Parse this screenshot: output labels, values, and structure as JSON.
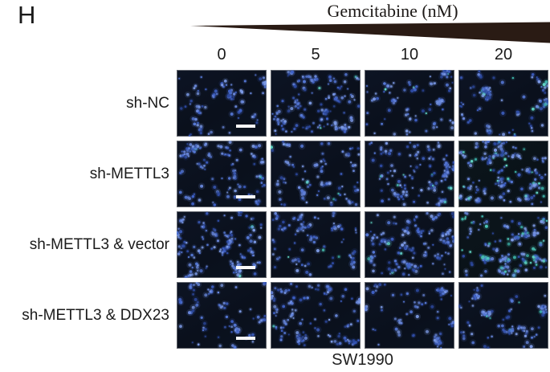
{
  "panel_label": "H",
  "header": {
    "title": "Gemcitabine (nM)",
    "doses": [
      "0",
      "5",
      "10",
      "20"
    ],
    "wedge_direction": "increasing-left-to-right"
  },
  "rows": [
    {
      "label": "sh-NC",
      "cells": [
        {
          "seed": 11,
          "density": 95,
          "cyan": 0.0,
          "scale_bar": true
        },
        {
          "seed": 12,
          "density": 155,
          "cyan": 0.02,
          "scale_bar": false
        },
        {
          "seed": 13,
          "density": 100,
          "cyan": 0.02,
          "scale_bar": false
        },
        {
          "seed": 14,
          "density": 110,
          "cyan": 0.05,
          "scale_bar": false
        }
      ]
    },
    {
      "label": "sh-METTL3",
      "cells": [
        {
          "seed": 21,
          "density": 125,
          "cyan": 0.03,
          "scale_bar": true
        },
        {
          "seed": 22,
          "density": 105,
          "cyan": 0.04,
          "scale_bar": false
        },
        {
          "seed": 23,
          "density": 150,
          "cyan": 0.06,
          "scale_bar": false
        },
        {
          "seed": 24,
          "density": 180,
          "cyan": 0.14,
          "scale_bar": false
        }
      ]
    },
    {
      "label": "sh-METTL3 & vector",
      "cells": [
        {
          "seed": 31,
          "density": 155,
          "cyan": 0.03,
          "scale_bar": true
        },
        {
          "seed": 32,
          "density": 100,
          "cyan": 0.02,
          "scale_bar": false
        },
        {
          "seed": 33,
          "density": 160,
          "cyan": 0.06,
          "scale_bar": false
        },
        {
          "seed": 34,
          "density": 170,
          "cyan": 0.2,
          "scale_bar": false
        }
      ]
    },
    {
      "label": "sh-METTL3 & DDX23",
      "cells": [
        {
          "seed": 41,
          "density": 85,
          "cyan": 0.0,
          "scale_bar": true
        },
        {
          "seed": 42,
          "density": 135,
          "cyan": 0.03,
          "scale_bar": false
        },
        {
          "seed": 43,
          "density": 95,
          "cyan": 0.0,
          "scale_bar": false
        },
        {
          "seed": 44,
          "density": 105,
          "cyan": 0.03,
          "scale_bar": false
        }
      ]
    }
  ],
  "footer": {
    "cell_line": "SW1990"
  },
  "colors": {
    "wedge": "#2a1b14",
    "text": "#1a1a1a",
    "scale_bar": "#f8f8f8",
    "micrograph_bg_navy": "#0a101c",
    "micrograph_bg_teal": "#0a1218",
    "nucleus_blue": [
      "#3e60c4",
      "#5578d6",
      "#7d9be6",
      "#2d49a0",
      "#6b8adf"
    ],
    "nucleus_cyan": [
      "#4fd0c0",
      "#63dcc9",
      "#3fb8ae"
    ]
  }
}
